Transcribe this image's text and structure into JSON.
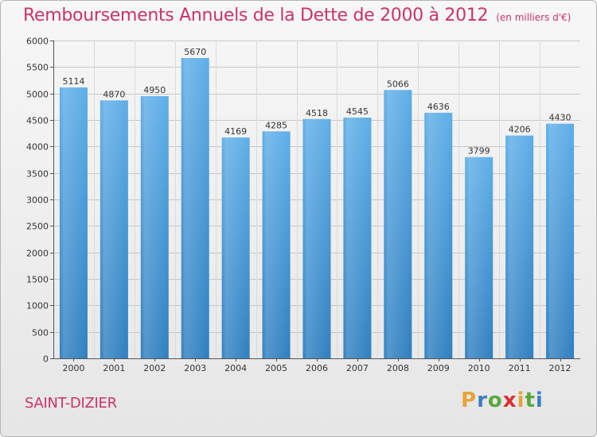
{
  "header": {
    "title": "Remboursements Annuels de la Dette de 2000 à 2012",
    "unit": "(en milliers d'€)"
  },
  "footer": {
    "city": "SAINT-DIZIER",
    "logo": "Proxiti",
    "logo_colors": [
      "#e8a33a",
      "#3d7fc1",
      "#5aa83c",
      "#d93030",
      "#e8a33a",
      "#5aa83c",
      "#3d7fc1"
    ]
  },
  "chart_data": {
    "type": "bar",
    "title": "Remboursements Annuels de la Dette de 2000 à 2012",
    "categories": [
      "2000",
      "2001",
      "2002",
      "2003",
      "2004",
      "2005",
      "2006",
      "2007",
      "2008",
      "2009",
      "2010",
      "2011",
      "2012"
    ],
    "values": [
      5114,
      4870,
      4950,
      5670,
      4169,
      4285,
      4518,
      4545,
      5066,
      4636,
      3799,
      4206,
      4430
    ],
    "ylim": [
      0,
      6000
    ],
    "yticks": [
      0,
      500,
      1000,
      1500,
      2000,
      2500,
      3000,
      3500,
      4000,
      4500,
      5000,
      5500,
      6000
    ],
    "grid": true,
    "bar_color_top": "#5eaee8",
    "bar_color_bottom": "#2f7fc0"
  }
}
